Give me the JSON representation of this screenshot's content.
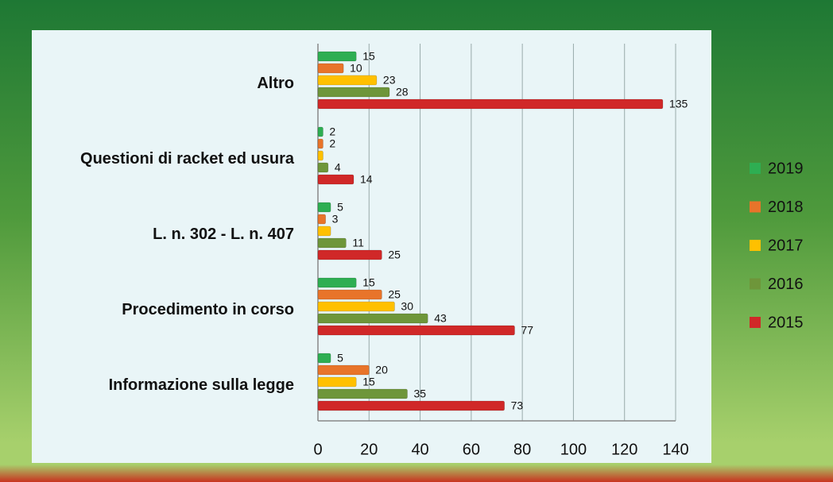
{
  "chart_data": {
    "type": "hbar",
    "categories": [
      "Altro",
      "Questioni di racket ed usura",
      "L. n. 302 - L. n. 407",
      "Procedimento in corso",
      "Informazione sulla legge"
    ],
    "series": [
      {
        "name": "2019",
        "color": "#2eae52",
        "values": [
          15,
          2,
          5,
          15,
          5
        ],
        "value_labels": [
          "15",
          "2",
          "5",
          "15",
          "5"
        ]
      },
      {
        "name": "2018",
        "color": "#e8742a",
        "values": [
          10,
          2,
          3,
          25,
          20
        ],
        "value_labels": [
          "10",
          "2",
          "3",
          "25",
          "20"
        ]
      },
      {
        "name": "2017",
        "color": "#ffc000",
        "values": [
          23,
          2,
          5,
          30,
          15
        ],
        "value_labels": [
          "23",
          null,
          null,
          "30",
          "15"
        ]
      },
      {
        "name": "2016",
        "color": "#6e963a",
        "values": [
          28,
          4,
          11,
          43,
          35
        ],
        "value_labels": [
          "28",
          "4",
          "11",
          "43",
          "35"
        ]
      },
      {
        "name": "2015",
        "color": "#d02828",
        "values": [
          135,
          14,
          25,
          77,
          73
        ],
        "value_labels": [
          "135",
          "14",
          "25",
          "77",
          "73"
        ]
      }
    ],
    "xlim": [
      0,
      140
    ],
    "xticks": [
      0,
      20,
      40,
      60,
      80,
      100,
      120,
      140
    ],
    "grid": true,
    "legend": "right"
  }
}
